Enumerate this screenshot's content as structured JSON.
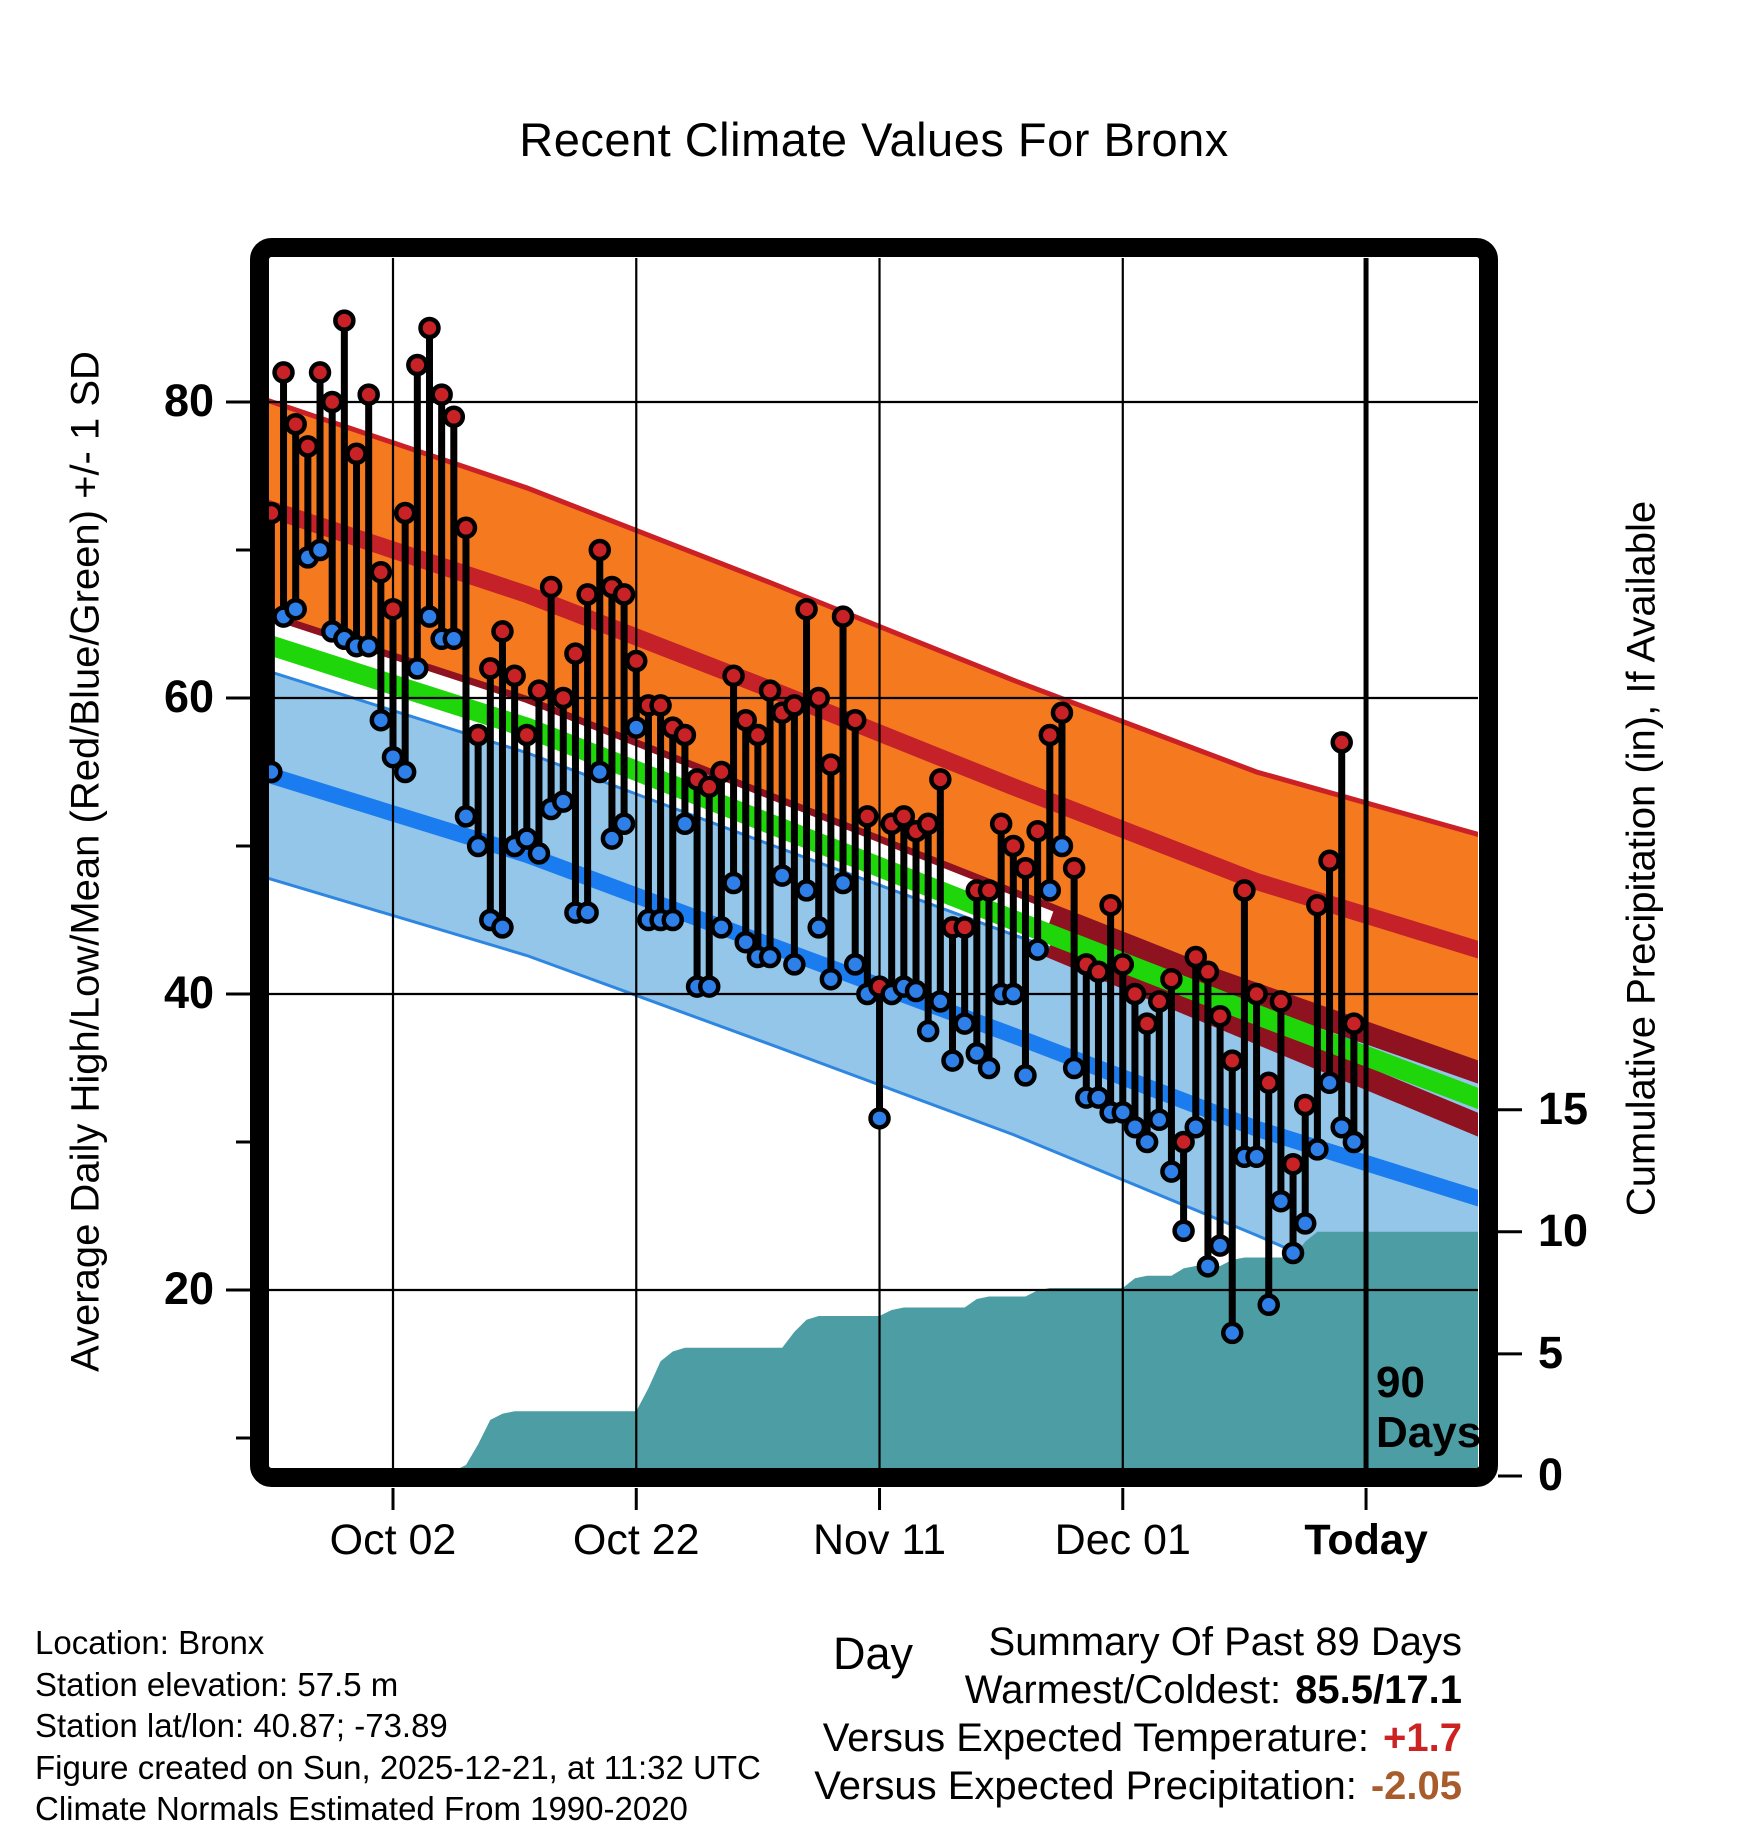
{
  "title": "Recent Climate Values For Bronx",
  "axes": {
    "x_label": "Day",
    "y_left_label": "Average Daily High/Low/Mean (Red/Blue/Green) +/- 1 SD",
    "y_right_label": "Cumulative Precipitation (in), If Available",
    "x_ticks": [
      {
        "day": 9,
        "label": "Oct 02",
        "bold": false
      },
      {
        "day": 29,
        "label": "Oct 22",
        "bold": false
      },
      {
        "day": 49,
        "label": "Nov 11",
        "bold": false
      },
      {
        "day": 69,
        "label": "Dec 01",
        "bold": false
      },
      {
        "day": 89,
        "label": "Today",
        "bold": true
      }
    ],
    "y_left_ticks": [
      80,
      60,
      40,
      20
    ],
    "y_left_minor_ticks": [
      70,
      50,
      30,
      10
    ],
    "y_right_ticks": [
      15,
      10,
      5,
      0
    ],
    "ylim_left": [
      7.3,
      90.4
    ],
    "ylim_right": [
      0,
      50.3
    ]
  },
  "annotation_90days": {
    "day": 89,
    "line1": "90",
    "line2": "Days"
  },
  "footer": {
    "location": "Location: Bronx",
    "elevation": "Station elevation: 57.5 m",
    "latlon": "Station lat/lon: 40.87; -73.89",
    "created": "Figure created on Sun, 2025-12-21, at 11:32 UTC",
    "normals": "Climate Normals Estimated From 1990-2020"
  },
  "summary": {
    "heading": "Summary Of Past 89 Days",
    "rows": [
      {
        "label": "Warmest/Coldest:",
        "value": "85.5/17.1",
        "color": "#000000"
      },
      {
        "label": "Versus Expected Temperature:",
        "value": "+1.7",
        "color": "#CC2222"
      },
      {
        "label": "Versus Expected Precipitation:",
        "value": "-2.05",
        "color": "#A85B2B"
      }
    ]
  },
  "colors": {
    "orange_band": "#F4791F",
    "red_edge": "#CB2026",
    "red_mean": "#C42129",
    "dark_red": "#8E1220",
    "green_mean": "#1FD60A",
    "blue_band": "#93C6E9",
    "blue_edge": "#2E86E0",
    "blue_mean": "#1B7CF0",
    "teal_precip": "#4D9DA4",
    "dot_high": "#C82227",
    "dot_low": "#2E7FE8",
    "grid": "#000000",
    "frame": "#000000"
  },
  "chart_data": {
    "type": "stem+band+area",
    "title": "Recent Climate Values For Bronx",
    "xlabel": "Day",
    "ylabel_left": "Average Daily High/Low/Mean (Red/Blue/Green) +/- 1 SD",
    "ylabel_right": "Cumulative Precipitation (in), If Available",
    "x_day_range": [
      -1.9,
      99
    ],
    "today_day": 89,
    "climatology_anchors": {
      "days": [
        -2,
        20,
        40,
        60,
        80,
        99
      ],
      "high_plus_sd": [
        80.3,
        74.2,
        67.8,
        61.2,
        55.0,
        50.6
      ],
      "high_mean": [
        73.0,
        67.0,
        60.6,
        54.0,
        47.6,
        42.8
      ],
      "high_minus_sd": [
        65.8,
        59.9,
        53.4,
        46.9,
        40.4,
        34.9
      ],
      "mean": [
        63.8,
        58.0,
        51.5,
        45.0,
        38.6,
        32.7
      ],
      "low_plus_sd": [
        62.0,
        56.3,
        50.1,
        44.0,
        38.2,
        35.2
      ],
      "low_mean": [
        55.0,
        49.4,
        43.3,
        37.2,
        30.9,
        26.0
      ],
      "low_minus_sd": [
        48.0,
        42.6,
        36.6,
        30.5,
        23.7,
        16.9
      ]
    },
    "mean_sd_lines": {
      "upper": {
        "days": [
          63,
          99
        ],
        "temps": [
          44.9,
          34.5
        ]
      },
      "lower": {
        "days": [
          63,
          99
        ],
        "temps": [
          43.2,
          30.9
        ]
      }
    },
    "daily": {
      "first_day": -1,
      "high": [
        72.5,
        82,
        78.5,
        77,
        82,
        80,
        85.5,
        76.5,
        80.5,
        68.5,
        66,
        72.5,
        82.5,
        85,
        80.5,
        79,
        71.5,
        57.5,
        62,
        64.5,
        61.5,
        57.5,
        60.5,
        67.5,
        60,
        63,
        67,
        70,
        67.5,
        67,
        62.5,
        59.5,
        59.5,
        58,
        57.5,
        54.5,
        54,
        55,
        61.5,
        58.5,
        57.5,
        60.5,
        59,
        59.5,
        66,
        60,
        55.5,
        65.5,
        58.5,
        52,
        40.5,
        51.5,
        52,
        51,
        51.5,
        54.5,
        44.5,
        44.5,
        47,
        47,
        51.5,
        50,
        48.5,
        51,
        57.5,
        59,
        48.5,
        42,
        41.5,
        46,
        42,
        40,
        38,
        39.5,
        41,
        30,
        42.5,
        41.5,
        38.5,
        35.5,
        47,
        40,
        34,
        39.5,
        28.5,
        32.5,
        46,
        49,
        57,
        38
      ],
      "low": [
        55,
        65.5,
        66,
        69.5,
        70,
        64.5,
        64,
        63.5,
        63.5,
        58.5,
        56,
        55,
        62,
        65.5,
        64,
        64,
        52,
        50,
        45,
        44.5,
        50,
        50.5,
        49.5,
        52.5,
        53,
        45.5,
        45.5,
        55,
        50.5,
        51.5,
        58,
        45,
        45,
        45,
        51.5,
        40.5,
        40.5,
        44.5,
        47.5,
        43.5,
        42.5,
        42.5,
        48,
        42,
        47,
        44.5,
        41,
        47.5,
        42,
        40,
        31.6,
        40,
        40.5,
        40.2,
        37.5,
        39.5,
        35.5,
        38,
        36,
        35,
        40,
        40,
        34.5,
        43,
        47,
        50,
        35,
        33,
        33,
        32,
        32,
        31,
        30,
        31.5,
        28,
        24,
        31,
        21.6,
        23,
        17.1,
        29,
        29,
        19,
        26,
        22.5,
        24.5,
        29.5,
        34,
        31,
        30
      ]
    },
    "precip_cumulative": {
      "first_day": -1,
      "values": [
        0,
        0,
        0,
        0,
        0,
        0,
        0,
        0,
        0,
        0.05,
        0.05,
        0.1,
        0.1,
        0.1,
        0.1,
        0.2,
        0.45,
        1.3,
        2.3,
        2.55,
        2.65,
        2.65,
        2.65,
        2.65,
        2.65,
        2.65,
        2.65,
        2.65,
        2.65,
        2.65,
        2.65,
        3.6,
        4.7,
        5.1,
        5.25,
        5.25,
        5.25,
        5.25,
        5.25,
        5.25,
        5.25,
        5.25,
        5.25,
        5.9,
        6.4,
        6.55,
        6.55,
        6.55,
        6.55,
        6.55,
        6.55,
        6.8,
        6.9,
        6.9,
        6.9,
        6.9,
        6.9,
        6.9,
        7.25,
        7.35,
        7.35,
        7.35,
        7.35,
        7.6,
        7.7,
        7.7,
        7.7,
        7.7,
        7.7,
        7.7,
        7.7,
        8.1,
        8.2,
        8.2,
        8.2,
        8.5,
        8.6,
        8.6,
        8.6,
        8.85,
        8.95,
        8.95,
        8.95,
        8.95,
        8.95,
        9.6,
        10,
        10,
        10,
        10
      ],
      "extend_flat_to_day": 99,
      "final_value": 10.0
    },
    "summary_stats": {
      "warmest": 85.5,
      "coldest": 17.1,
      "vs_expected_temp": 1.7,
      "vs_expected_precip": -2.05
    }
  }
}
